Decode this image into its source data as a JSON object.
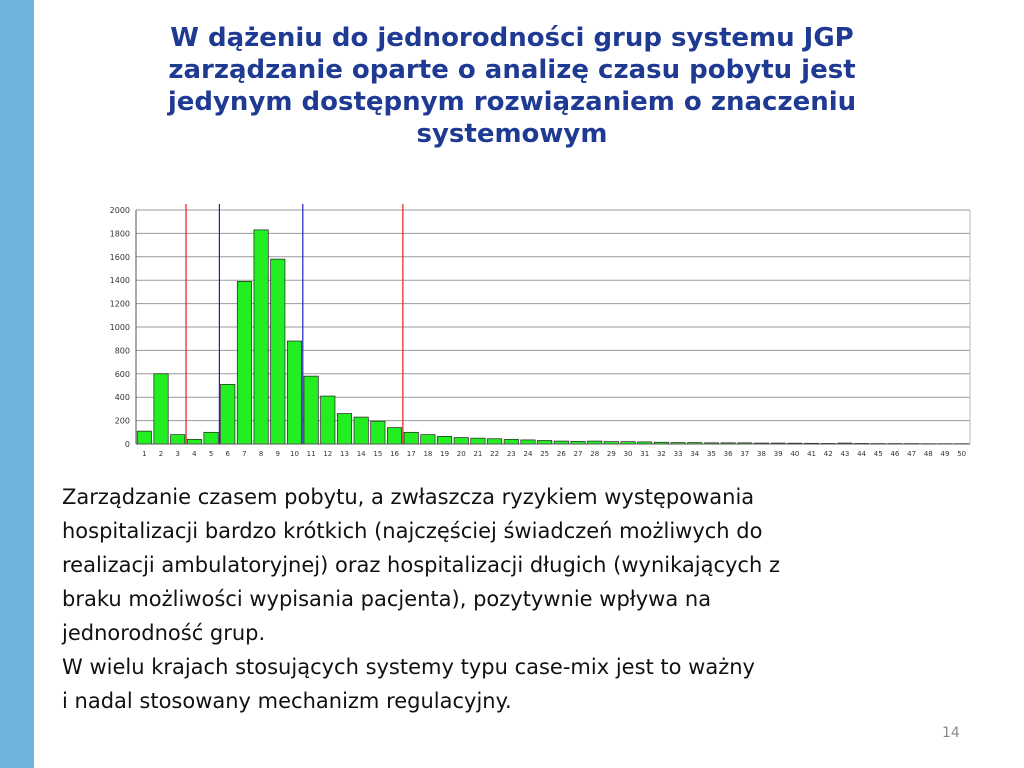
{
  "slide": {
    "title_lines": [
      "W dążeniu do jednorodności grup systemu JGP",
      "zarządzanie oparte o analizę czasu pobytu jest",
      "jedynym dostępnym rozwiązaniem o znaczeniu",
      "systemowym"
    ],
    "body_lines": [
      "Zarządzanie czasem pobytu, a zwłaszcza ryzykiem występowania",
      "hospitalizacji bardzo krótkich (najczęściej świadczeń możliwych do",
      "realizacji ambulatoryjnej) oraz hospitalizacji długich (wynikających z",
      "braku możliwości wypisania pacjenta), pozytywnie wpływa na",
      "jednorodność grup.",
      "W wielu krajach stosujących systemy typu case-mix jest to ważny",
      "i nadal stosowany mechanizm regulacyjny."
    ],
    "page_number": "14",
    "accent_color": "#6fb4dc",
    "title_color": "#1f3a93"
  },
  "chart_data": {
    "type": "bar",
    "categories": [
      "1",
      "2",
      "3",
      "4",
      "5",
      "6",
      "7",
      "8",
      "9",
      "10",
      "11",
      "12",
      "13",
      "14",
      "15",
      "16",
      "17",
      "18",
      "19",
      "20",
      "21",
      "22",
      "23",
      "24",
      "25",
      "26",
      "27",
      "28",
      "29",
      "30",
      "31",
      "32",
      "33",
      "34",
      "35",
      "36",
      "37",
      "38",
      "39",
      "40",
      "41",
      "42",
      "43",
      "44",
      "45",
      "46",
      "47",
      "48",
      "49",
      "50"
    ],
    "values": [
      110,
      600,
      80,
      40,
      100,
      510,
      1390,
      1830,
      1580,
      880,
      580,
      410,
      260,
      230,
      195,
      140,
      100,
      80,
      65,
      55,
      50,
      45,
      40,
      35,
      30,
      25,
      22,
      25,
      20,
      20,
      18,
      15,
      12,
      12,
      10,
      10,
      10,
      8,
      8,
      7,
      6,
      5,
      8,
      5,
      4,
      4,
      4,
      3,
      3,
      3
    ],
    "ylim": [
      0,
      2000
    ],
    "yticks": [
      "0",
      "200",
      "400",
      "600",
      "800",
      "1000",
      "1200",
      "1400",
      "1600",
      "1800",
      "2000"
    ],
    "grid": true,
    "bar_color": "#22ee22",
    "markers": [
      {
        "x": 3.5,
        "color": "#e02020"
      },
      {
        "x": 5.5,
        "color": "#2020c0"
      },
      {
        "x": 10.5,
        "color": "#2020c0"
      },
      {
        "x": 16.5,
        "color": "#e02020"
      }
    ]
  }
}
